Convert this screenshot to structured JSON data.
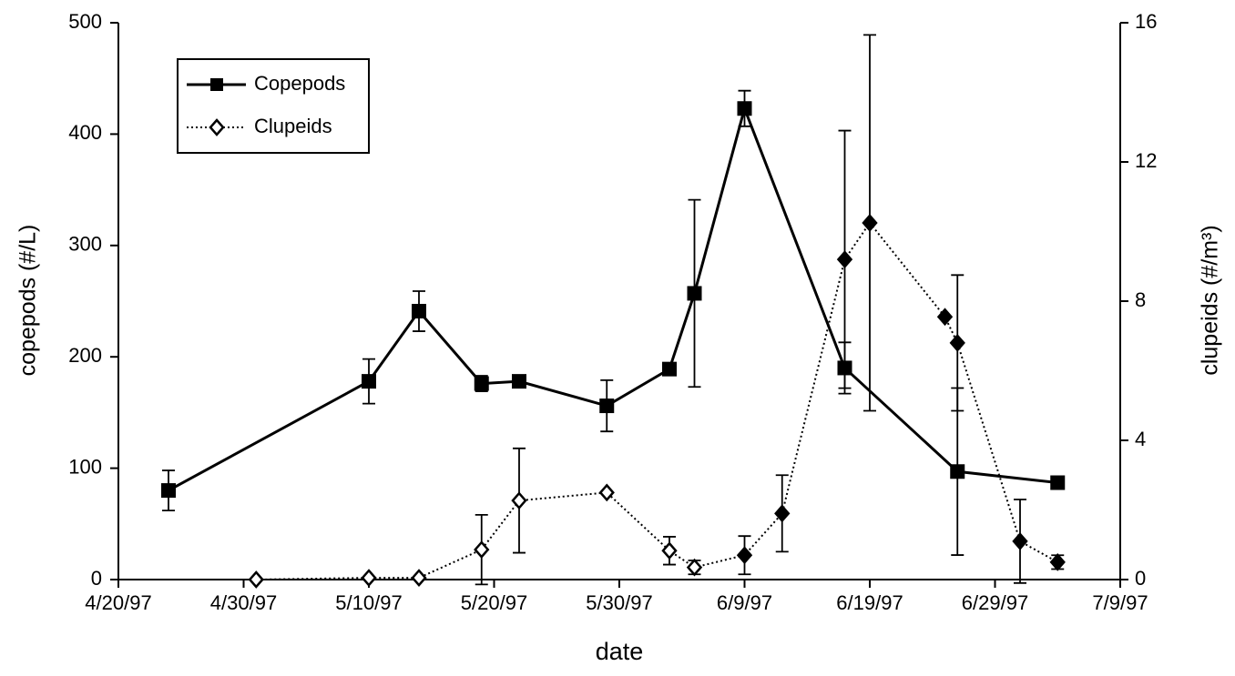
{
  "chart_data": {
    "type": "line",
    "x_label": "date",
    "y_label": "copepods (#/L)",
    "y2_label": "clupeids (#/m³)",
    "xlim": [
      "1997-04-20",
      "1997-07-09"
    ],
    "xticks": [
      {
        "value": "1997-04-20",
        "label": "4/20/97"
      },
      {
        "value": "1997-04-30",
        "label": "4/30/97"
      },
      {
        "value": "1997-05-10",
        "label": "5/10/97"
      },
      {
        "value": "1997-05-20",
        "label": "5/20/97"
      },
      {
        "value": "1997-05-30",
        "label": "5/30/97"
      },
      {
        "value": "1997-06-09",
        "label": "6/9/97"
      },
      {
        "value": "1997-06-19",
        "label": "6/19/97"
      },
      {
        "value": "1997-06-29",
        "label": "6/29/97"
      },
      {
        "value": "1997-07-09",
        "label": "7/9/97"
      }
    ],
    "ylim": [
      0,
      500
    ],
    "yticks": [
      0,
      100,
      200,
      300,
      400,
      500
    ],
    "y2lim": [
      0,
      16
    ],
    "y2ticks": [
      0,
      4,
      8,
      12,
      16
    ],
    "legend": "upper left",
    "series": [
      {
        "name": "Copepods",
        "color": "#000000",
        "line_style": "solid",
        "marker": "square",
        "axis": "y",
        "x": [
          "1997-04-24",
          "1997-05-10",
          "1997-05-14",
          "1997-05-19",
          "1997-05-22",
          "1997-05-29",
          "1997-06-03",
          "1997-06-05",
          "1997-06-09",
          "1997-06-17",
          "1997-06-26",
          "1997-07-04"
        ],
        "values": [
          80,
          178,
          241,
          176,
          178,
          156,
          189,
          257,
          423,
          190,
          97,
          87
        ],
        "errors": [
          18,
          20,
          18,
          7,
          3,
          23,
          3,
          84,
          16,
          23,
          75,
          3
        ],
        "marker_filled": [
          true,
          true,
          true,
          true,
          true,
          true,
          true,
          true,
          true,
          true,
          true,
          true
        ]
      },
      {
        "name": "Clupeids",
        "color": "#000000",
        "line_style": "dotted",
        "marker": "diamond",
        "axis": "y2",
        "x": [
          "1997-05-01",
          "1997-05-10",
          "1997-05-14",
          "1997-05-19",
          "1997-05-22",
          "1997-05-29",
          "1997-06-03",
          "1997-06-05",
          "1997-06-09",
          "1997-06-12",
          "1997-06-17",
          "1997-06-19",
          "1997-06-25",
          "1997-06-26",
          "1997-07-01",
          "1997-07-04"
        ],
        "values": [
          0,
          0.05,
          0.05,
          0.86,
          2.27,
          2.5,
          0.83,
          0.35,
          0.7,
          1.9,
          9.2,
          10.25,
          7.55,
          6.8,
          1.1,
          0.5
        ],
        "errors": [
          null,
          null,
          null,
          1.0,
          1.5,
          null,
          0.4,
          0.2,
          0.55,
          1.1,
          3.7,
          5.4,
          null,
          1.95,
          1.2,
          0.2
        ],
        "marker_filled": [
          false,
          false,
          false,
          false,
          false,
          false,
          false,
          false,
          true,
          true,
          true,
          true,
          true,
          true,
          true,
          true
        ]
      }
    ]
  }
}
